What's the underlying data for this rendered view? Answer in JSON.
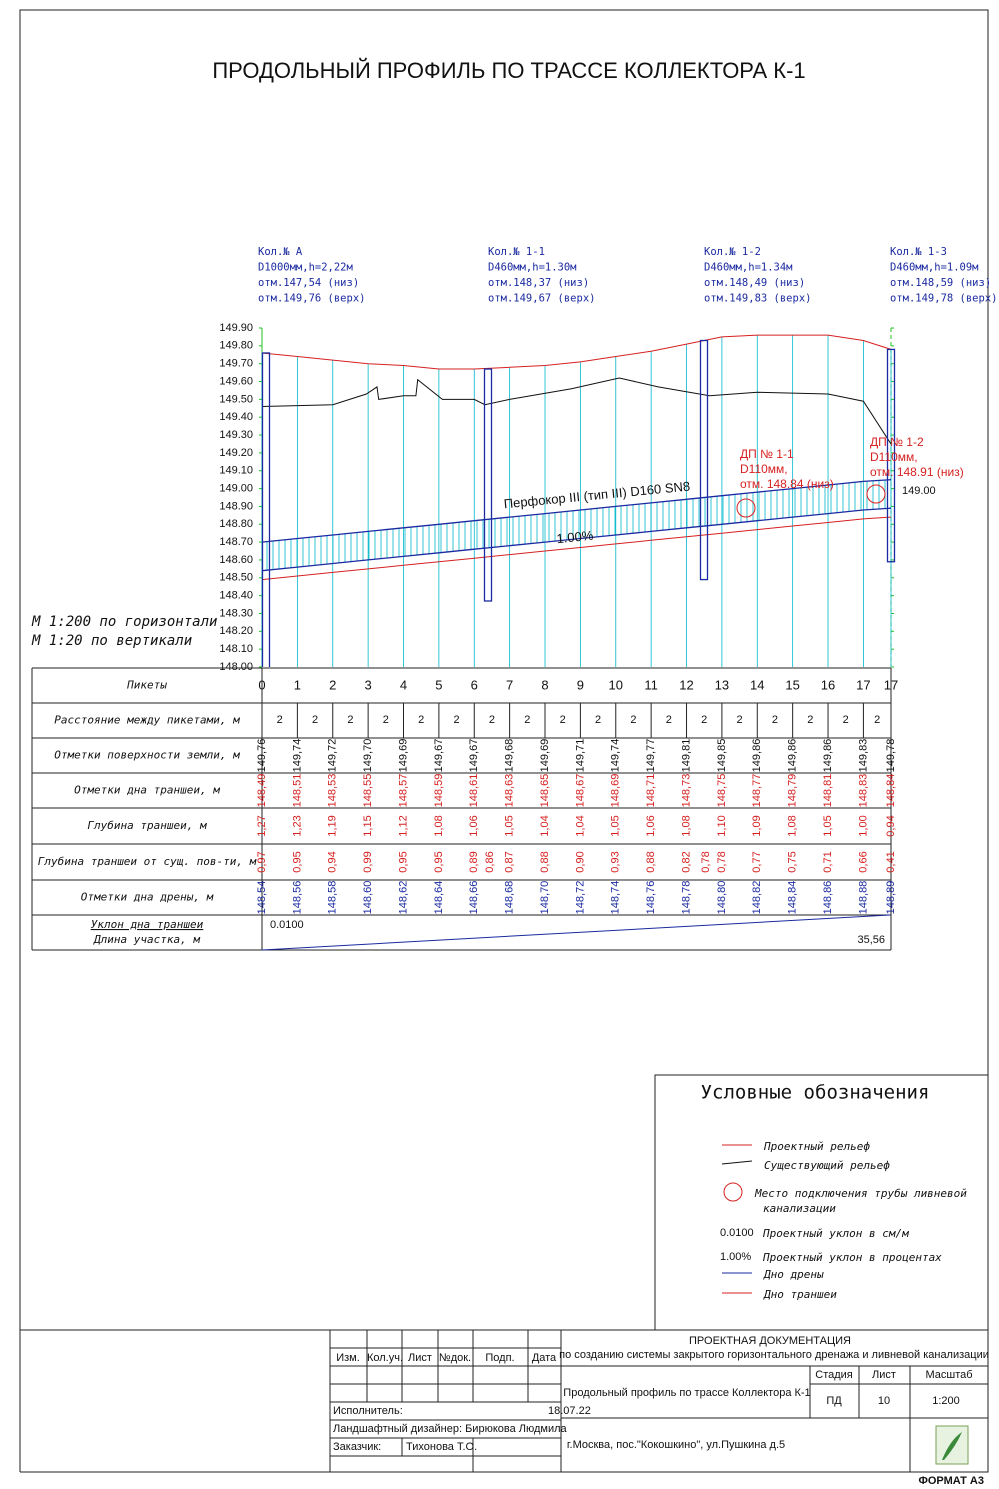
{
  "title": "ПРОДОЛЬНЫЙ ПРОФИЛЬ ПО ТРАССЕ КОЛЛЕКТОРА К-1",
  "wells": [
    {
      "lines": [
        "Кол.№ А",
        "D1000мм,h=2,22м",
        "отм.147,54 (низ)",
        "отм.149,76 (верх)"
      ],
      "top": 149.76,
      "bottom": 147.54
    },
    {
      "lines": [
        "Кол.№ 1-1",
        "D460мм,h=1.30м",
        "отм.148,37 (низ)",
        "отм.149,67 (верх)"
      ],
      "top": 149.67,
      "bottom": 148.37
    },
    {
      "lines": [
        "Кол.№ 1-2",
        "D460мм,h=1.34м",
        "отм.148,49 (низ)",
        "отм.149,83 (верх)"
      ],
      "top": 149.83,
      "bottom": 148.49
    },
    {
      "lines": [
        "Кол.№ 1-3",
        "D460мм,h=1.09м",
        "отм.148,59 (низ)",
        "отм.149,78 (верх)"
      ],
      "top": 149.78,
      "bottom": 148.59
    }
  ],
  "profile": {
    "xlim": [
      0,
      35.56
    ],
    "ylim": [
      148.0,
      149.9
    ],
    "yticks": [
      {
        "value": 148.0,
        "label": "148.00"
      },
      {
        "value": 148.1,
        "label": "148.10"
      },
      {
        "value": 148.2,
        "label": "148.20"
      },
      {
        "value": 148.3,
        "label": "148.30"
      },
      {
        "value": 148.4,
        "label": "148.40"
      },
      {
        "value": 148.5,
        "label": "148.50"
      },
      {
        "value": 148.6,
        "label": "148.60"
      },
      {
        "value": 148.7,
        "label": "148.70"
      },
      {
        "value": 148.8,
        "label": "148.80"
      },
      {
        "value": 148.9,
        "label": "148.90"
      },
      {
        "value": 149.0,
        "label": "149.00"
      },
      {
        "value": 149.1,
        "label": "149.10"
      },
      {
        "value": 149.2,
        "label": "149.20"
      },
      {
        "value": 149.3,
        "label": "149.30"
      },
      {
        "value": 149.4,
        "label": "149.40"
      },
      {
        "value": 149.5,
        "label": "149.50"
      },
      {
        "value": 149.6,
        "label": "149.60"
      },
      {
        "value": 149.7,
        "label": "149.70"
      },
      {
        "value": 149.8,
        "label": "149.80"
      },
      {
        "value": 149.9,
        "label": "149.90"
      }
    ],
    "stations": [
      0,
      2,
      4,
      6,
      8,
      10,
      12,
      14,
      16,
      18,
      20,
      22,
      24,
      26,
      28,
      30,
      32,
      34,
      35.56
    ],
    "design_surface": [
      149.76,
      149.74,
      149.72,
      149.7,
      149.69,
      149.67,
      149.67,
      149.68,
      149.69,
      149.71,
      149.74,
      149.77,
      149.81,
      149.85,
      149.86,
      149.86,
      149.86,
      149.83,
      149.78
    ],
    "trench_bottom": [
      148.49,
      148.51,
      148.53,
      148.55,
      148.57,
      148.59,
      148.61,
      148.63,
      148.65,
      148.67,
      148.69,
      148.71,
      148.73,
      148.75,
      148.77,
      148.79,
      148.81,
      148.83,
      148.84
    ],
    "drain_bottom": [
      148.54,
      148.56,
      148.58,
      148.6,
      148.62,
      148.64,
      148.66,
      148.68,
      148.7,
      148.72,
      148.74,
      148.76,
      148.78,
      148.8,
      148.82,
      148.84,
      148.86,
      148.88,
      148.89
    ],
    "pipe_top": [
      148.7,
      148.72,
      148.74,
      148.76,
      148.78,
      148.8,
      148.82,
      148.84,
      148.86,
      148.88,
      148.9,
      148.92,
      148.94,
      148.96,
      148.98,
      149.0,
      149.02,
      149.04,
      149.05
    ],
    "existing_relief": {
      "x": [
        0,
        4,
        5.9,
        6.5,
        6.6,
        8,
        8.7,
        8.8,
        10.2,
        12,
        12.6,
        14,
        17.5,
        20.2,
        22.4,
        25.3,
        28,
        32,
        34,
        35.56
      ],
      "values": [
        149.46,
        149.47,
        149.53,
        149.57,
        149.5,
        149.52,
        149.52,
        149.61,
        149.5,
        149.5,
        149.47,
        149.5,
        149.56,
        149.62,
        149.57,
        149.52,
        149.54,
        149.53,
        149.49,
        149.25
      ]
    },
    "right_label": "149.00",
    "pipe_label": "Перфокор III (тип III) D160 SN8",
    "slope_label": "1.00%",
    "connections": [
      {
        "lines": [
          "ДП № 1-1",
          "D110мм,",
          "отм. 148.84 (низ)"
        ]
      },
      {
        "lines": [
          "ДП № 1-2",
          "D110мм,",
          "отм. 148.91 (низ)"
        ]
      }
    ],
    "scale_notes": [
      "М 1:200 по горизонтали",
      "М 1:20 по вертикали"
    ]
  },
  "table": {
    "row_labels": [
      "Пикеты",
      "Расстояние между пикетами, м",
      "Отметки поверхности земли, м",
      "Отметки дна траншеи, м",
      "Глубина траншеи, м",
      "Глубина траншеи от сущ. пов-ти, м",
      "Отметки дна дрены, м",
      "Уклон дна траншеи",
      "Длина участка, м"
    ],
    "pickets": [
      "0",
      "1",
      "2",
      "3",
      "4",
      "5",
      "6",
      "7",
      "8",
      "9",
      "10",
      "11",
      "12",
      "13",
      "14",
      "15",
      "16",
      "17",
      "17"
    ],
    "distances": [
      "2",
      "2",
      "2",
      "2",
      "2",
      "2",
      "2",
      "2",
      "2",
      "2",
      "2",
      "2",
      "2",
      "2",
      "2",
      "2",
      "2",
      "2"
    ],
    "surface": [
      "149,76",
      "149,74",
      "149,72",
      "149,70",
      "149,69",
      "149,67",
      "149,67",
      "149,68",
      "149,69",
      "149,71",
      "149,74",
      "149,77",
      "149,81",
      "149,85",
      "149,86",
      "149,86",
      "149,86",
      "149,83",
      "149,78"
    ],
    "trench": [
      "148,49",
      "148,51",
      "148,53",
      "148,55",
      "148,57",
      "148,59",
      "148,61",
      "148,63",
      "148,65",
      "148,67",
      "148,69",
      "148,71",
      "148,73",
      "148,75",
      "148,77",
      "148,79",
      "148,81",
      "148,83",
      "148,84"
    ],
    "depth": [
      "1,27",
      "1,23",
      "1,19",
      "1,15",
      "1,12",
      "1,08",
      "1,06",
      "1,05",
      "1,04",
      "1,04",
      "1,05",
      "1,06",
      "1,08",
      "1,10",
      "1,09",
      "1,08",
      "1,05",
      "1,00",
      "0,94"
    ],
    "depth_existing": [
      "0,97",
      "0,95",
      "0,94",
      "0,99",
      "0,95",
      "0,95",
      "0,89",
      "0,87",
      "0,88",
      "0,90",
      "0,93",
      "0,88",
      "0,82",
      "0,78",
      "0,77",
      "0,75",
      "0,71",
      "0,66",
      "0,41"
    ],
    "depth_existing_wells": [
      "0,86",
      "0,78"
    ],
    "drain": [
      "148,54",
      "148,56",
      "148,58",
      "148,60",
      "148,62",
      "148,64",
      "148,66",
      "148,68",
      "148,70",
      "148,72",
      "148,74",
      "148,76",
      "148,78",
      "148,80",
      "148,82",
      "148,84",
      "148,86",
      "148,88",
      "148,89"
    ],
    "slope": "0.0100",
    "length": "35,56"
  },
  "legend": {
    "title": "Условные обозначения",
    "items": [
      "Проектный рельеф",
      "Существующий рельеф",
      "Место подключения трубы ливневой",
      "канализации",
      "Проектный уклон в см/м",
      "Проектный уклон в процентах",
      "Дно дрены",
      "Дно траншеи"
    ],
    "slope_symbol": "0.0100",
    "percent_symbol": "1.00%"
  },
  "title_block": {
    "headers": [
      "Изм.",
      "Кол.уч.",
      "Лист",
      "№док.",
      "Подп.",
      "Дата"
    ],
    "executor_label": "Исполнитель:",
    "date": "18.07.22",
    "designer": "Ландшафтный дизайнер: Бирюкова Людмила",
    "customer_label": "Заказчик:",
    "customer": "Тихонова Т.О.",
    "doc_title": "ПРОЕКТНАЯ ДОКУМЕНТАЦИЯ",
    "doc_subtitle": "по созданию системы закрытого горизонтального дренажа и ливневой канализации",
    "sheet_title": "Продольный профиль по трассе Коллектора К-1",
    "stage_headers": [
      "Стадия",
      "Лист",
      "Масштаб"
    ],
    "stage_values": [
      "ПД",
      "10",
      "1:200"
    ],
    "address": "г.Москва, пос.\"Кокошкино\", ул.Пушкина д.5",
    "format": "ФОРМАТ А3"
  }
}
